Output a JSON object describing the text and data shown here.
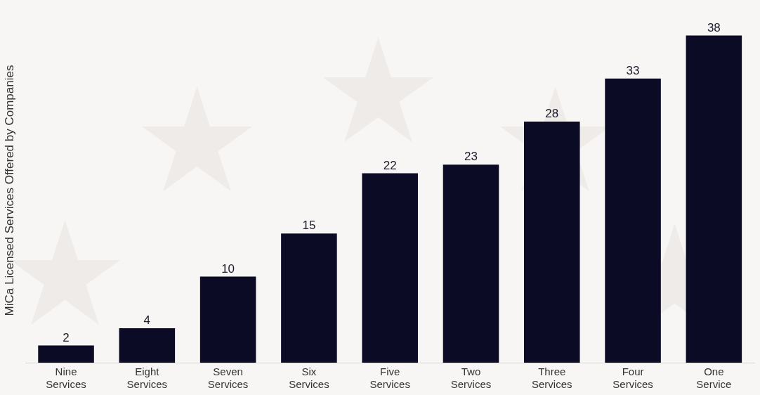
{
  "chart_data": {
    "type": "bar",
    "ylabel": "MiCa Licensed Services Offered by Companies",
    "categories": [
      "Nine Services",
      "Eight Services",
      "Seven Services",
      "Six Services",
      "Five Services",
      "Two Services",
      "Three Services",
      "Four Services",
      "One Service"
    ],
    "values": [
      2,
      4,
      10,
      15,
      22,
      23,
      28,
      33,
      38
    ],
    "color": "#0b0b26",
    "data_labels": true,
    "grid": false,
    "legend": false
  }
}
